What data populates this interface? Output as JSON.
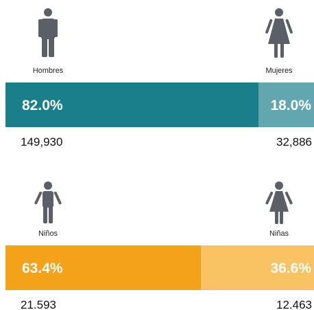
{
  "chart_data": [
    {
      "type": "split-bar",
      "categories": [
        "Hombres",
        "Mujeres"
      ],
      "values": [
        82.0,
        18.0
      ],
      "value_labels": [
        "82.0%",
        "18.0%"
      ],
      "colors": [
        "#1b7f8b",
        "#62a7b0"
      ],
      "totals": [
        "149,930",
        "32,886"
      ],
      "xlim": [
        0,
        100
      ]
    },
    {
      "type": "split-bar",
      "categories": [
        "Niños",
        "Niñas"
      ],
      "values": [
        63.4,
        36.6
      ],
      "value_labels": [
        "63.4%",
        "36.6%"
      ],
      "colors": [
        "#f5a21b",
        "#f9c262"
      ],
      "totals": [
        "21.593",
        "12.463"
      ],
      "xlim": [
        0,
        100
      ]
    }
  ]
}
